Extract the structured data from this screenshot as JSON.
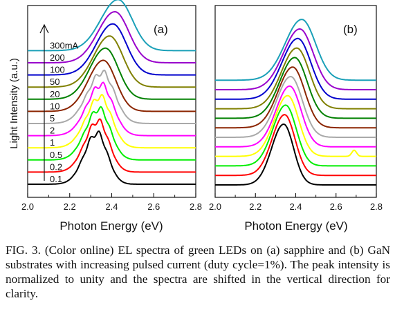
{
  "chart_data": [
    {
      "type": "line",
      "panel_label": "(a)",
      "xlabel": "Photon Energy (eV)",
      "ylabel": "Light Intensity (a.u.)",
      "xlim": [
        2.0,
        2.8
      ],
      "xticks": [
        "2.0",
        "2.2",
        "2.4",
        "2.6",
        "2.8"
      ],
      "y_ticks_shown": false,
      "arrow": true,
      "series": [
        {
          "name": "0.1",
          "color": "#000000",
          "peak": 2.33,
          "offset": 0
        },
        {
          "name": "0.2",
          "color": "#ff0000",
          "peak": 2.335,
          "offset": 1
        },
        {
          "name": "0.5",
          "color": "#00ee00",
          "peak": 2.34,
          "offset": 2
        },
        {
          "name": "1",
          "color": "#ffff00",
          "peak": 2.345,
          "offset": 3
        },
        {
          "name": "2",
          "color": "#ff00ff",
          "peak": 2.35,
          "offset": 4
        },
        {
          "name": "5",
          "color": "#a9a9a9",
          "peak": 2.355,
          "offset": 5
        },
        {
          "name": "10",
          "color": "#8b2500",
          "peak": 2.36,
          "offset": 6
        },
        {
          "name": "20",
          "color": "#008000",
          "peak": 2.37,
          "offset": 7
        },
        {
          "name": "50",
          "color": "#808000",
          "peak": 2.39,
          "offset": 8
        },
        {
          "name": "100",
          "color": "#0000cc",
          "peak": 2.405,
          "offset": 9
        },
        {
          "name": "200",
          "color": "#9900cc",
          "peak": 2.415,
          "offset": 10
        },
        {
          "name": "300mA",
          "color": "#1aa0b8",
          "peak": 2.43,
          "offset": 11
        }
      ]
    },
    {
      "type": "line",
      "panel_label": "(b)",
      "xlabel": "Photon Energy (eV)",
      "xlim": [
        2.0,
        2.8
      ],
      "xticks": [
        "2.0",
        "2.2",
        "2.4",
        "2.6",
        "2.8"
      ],
      "y_ticks_shown": false,
      "series": [
        {
          "color": "#000000",
          "peak": 2.34,
          "offset": 0
        },
        {
          "color": "#ff0000",
          "peak": 2.345,
          "offset": 1
        },
        {
          "color": "#00ee00",
          "peak": 2.35,
          "offset": 2
        },
        {
          "color": "#ffff00",
          "peak": 2.36,
          "offset": 3
        },
        {
          "color": "#ff00ff",
          "peak": 2.37,
          "offset": 4
        },
        {
          "color": "#a9a9a9",
          "peak": 2.375,
          "offset": 5
        },
        {
          "color": "#8b2500",
          "peak": 2.385,
          "offset": 6
        },
        {
          "color": "#008000",
          "peak": 2.395,
          "offset": 7
        },
        {
          "color": "#808000",
          "peak": 2.405,
          "offset": 8
        },
        {
          "color": "#0000cc",
          "peak": 2.41,
          "offset": 9
        },
        {
          "color": "#9900cc",
          "peak": 2.42,
          "offset": 10
        },
        {
          "color": "#1aa0b8",
          "peak": 2.43,
          "offset": 11
        }
      ]
    }
  ],
  "caption": "FIG. 3. (Color online) EL spectra of green LEDs on (a) sapphire and (b) GaN substrates with increasing pulsed current (duty cycle=1%). The peak intensity is normalized to unity and the spectra are shifted in the vertical direction for clarity."
}
